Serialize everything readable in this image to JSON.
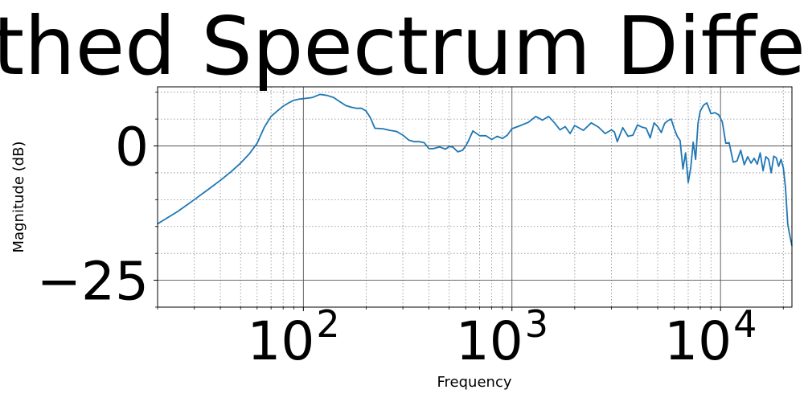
{
  "chart_data": {
    "type": "line",
    "title": "Smoothed Spectrum Difference",
    "xlabel": "Frequency",
    "ylabel": "Magnitude (dB)",
    "xscale": "log",
    "xlim": [
      20,
      22000
    ],
    "ylim": [
      -30,
      11
    ],
    "grid": {
      "major": true,
      "minor": true
    },
    "line_color": "#1f77b4",
    "y_ticks": [
      {
        "value": 0,
        "label": "0"
      },
      {
        "value": -25,
        "label": "−25"
      }
    ],
    "x_ticks": [
      {
        "value": 100,
        "base": "10",
        "exp": "2"
      },
      {
        "value": 1000,
        "base": "10",
        "exp": "3"
      },
      {
        "value": 10000,
        "base": "10",
        "exp": "4"
      }
    ],
    "series": [
      {
        "x": [
          20,
          25,
          30,
          35,
          40,
          45,
          50,
          55,
          60,
          65,
          70,
          75,
          80,
          85,
          90,
          95,
          100,
          110,
          120,
          130,
          140,
          150,
          160,
          170,
          180,
          190,
          200,
          210,
          220,
          240,
          260,
          280,
          300,
          320,
          340,
          360,
          380,
          400,
          420,
          450,
          480,
          500,
          520,
          550,
          580,
          600,
          620,
          650,
          700,
          750,
          800,
          850,
          900,
          950,
          1000,
          1100,
          1200,
          1300,
          1400,
          1500,
          1600,
          1700,
          1800,
          1900,
          2000,
          2200,
          2400,
          2600,
          2800,
          3000,
          3100,
          3200,
          3400,
          3600,
          3800,
          4000,
          4200,
          4400,
          4600,
          4800,
          5000,
          5200,
          5400,
          5600,
          5800,
          6000,
          6200,
          6400,
          6600,
          6800,
          7000,
          7200,
          7400,
          7600,
          7800,
          8000,
          8300,
          8600,
          9000,
          9400,
          9800,
          10200,
          10600,
          11000,
          11500,
          12000,
          12500,
          13000,
          13500,
          14000,
          14500,
          15000,
          15500,
          16000,
          16500,
          17000,
          17500,
          18000,
          18500,
          19000,
          19500,
          20000,
          20500,
          21000,
          21500,
          22000
        ],
        "y": [
          -14.5,
          -12.2,
          -10.0,
          -8.1,
          -6.4,
          -4.8,
          -3.2,
          -1.5,
          0.5,
          3.5,
          5.5,
          6.5,
          7.4,
          8.0,
          8.5,
          8.7,
          8.8,
          9.0,
          9.6,
          9.4,
          9.0,
          8.2,
          7.5,
          7.2,
          7.0,
          7.0,
          6.5,
          5.2,
          3.3,
          3.2,
          2.9,
          2.7,
          2.0,
          1.1,
          0.8,
          0.8,
          0.6,
          -0.5,
          -0.5,
          -0.2,
          -0.6,
          -0.1,
          -0.2,
          -1.1,
          -0.8,
          0.0,
          1.0,
          2.8,
          1.9,
          1.9,
          1.2,
          1.8,
          1.4,
          2.0,
          3.2,
          3.8,
          4.4,
          5.5,
          4.8,
          5.5,
          4.3,
          3.0,
          3.6,
          2.3,
          3.8,
          2.9,
          4.3,
          3.5,
          2.3,
          3.0,
          2.6,
          0.8,
          3.4,
          1.8,
          2.0,
          3.9,
          3.5,
          3.3,
          1.5,
          4.3,
          3.6,
          2.5,
          4.2,
          4.7,
          5.0,
          3.2,
          1.8,
          1.0,
          -4.3,
          -1.3,
          -6.8,
          -4.0,
          0.7,
          -2.5,
          4.3,
          6.5,
          7.6,
          8.0,
          6.0,
          6.2,
          5.8,
          4.5,
          0.5,
          0.6,
          -3.0,
          -2.8,
          -0.8,
          -3.5,
          -2.0,
          -3.2,
          -2.3,
          -3.4,
          -1.3,
          -4.6,
          -2.0,
          -2.5,
          -5.0,
          -1.9,
          -2.2,
          -3.8,
          -2.5,
          -4.1,
          -7.8,
          -14.6,
          -16.7,
          -18.6
        ]
      }
    ]
  }
}
